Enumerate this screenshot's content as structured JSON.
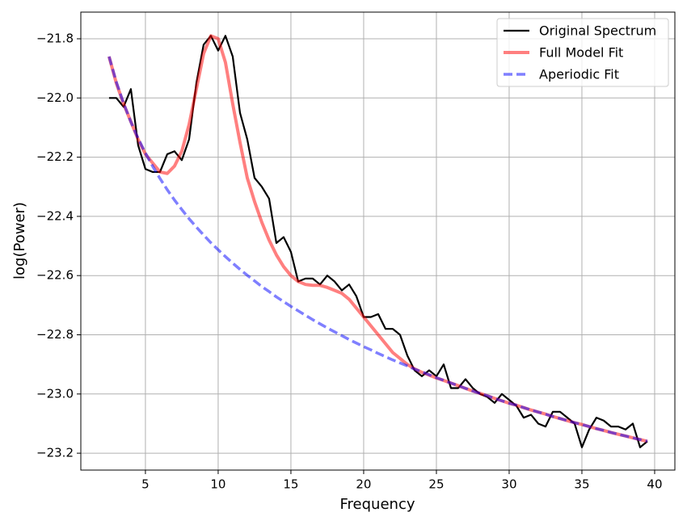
{
  "chart_data": {
    "type": "line",
    "xlabel": "Frequency",
    "ylabel": "log(Power)",
    "x": [
      2.5,
      3,
      3.5,
      4,
      4.5,
      5,
      5.5,
      6,
      6.5,
      7,
      7.5,
      8,
      8.5,
      9,
      9.5,
      10,
      10.5,
      11,
      11.5,
      12,
      12.5,
      13,
      13.5,
      14,
      14.5,
      15,
      15.5,
      16,
      16.5,
      17,
      17.5,
      18,
      18.5,
      19,
      19.5,
      20,
      20.5,
      21,
      21.5,
      22,
      22.5,
      23,
      23.5,
      24,
      24.5,
      25,
      25.5,
      26,
      26.5,
      27,
      27.5,
      28,
      28.5,
      29,
      29.5,
      30,
      30.5,
      31,
      31.5,
      32,
      32.5,
      33,
      33.5,
      34,
      34.5,
      35,
      35.5,
      36,
      36.5,
      37,
      37.5,
      38,
      38.5,
      39,
      39.5
    ],
    "series": [
      {
        "name": "Original Spectrum",
        "color": "#000000",
        "alpha": 1,
        "linestyle": "solid",
        "values": [
          -22.0,
          -22.0,
          -22.03,
          -21.97,
          -22.16,
          -22.24,
          -22.25,
          -22.25,
          -22.19,
          -22.18,
          -22.21,
          -22.14,
          -21.95,
          -21.82,
          -21.79,
          -21.84,
          -21.79,
          -21.86,
          -22.05,
          -22.14,
          -22.27,
          -22.3,
          -22.34,
          -22.49,
          -22.47,
          -22.52,
          -22.62,
          -22.61,
          -22.61,
          -22.63,
          -22.6,
          -22.62,
          -22.65,
          -22.63,
          -22.67,
          -22.74,
          -22.74,
          -22.73,
          -22.78,
          -22.78,
          -22.8,
          -22.87,
          -22.92,
          -22.94,
          -22.92,
          -22.94,
          -22.9,
          -22.98,
          -22.98,
          -22.95,
          -22.98,
          -23.0,
          -23.01,
          -23.03,
          -23.0,
          -23.02,
          -23.04,
          -23.08,
          -23.07,
          -23.1,
          -23.11,
          -23.06,
          -23.06,
          -23.08,
          -23.1,
          -23.18,
          -23.12,
          -23.08,
          -23.09,
          -23.11,
          -23.11,
          -23.12,
          -23.1,
          -23.18,
          -23.16
        ]
      },
      {
        "name": "Full Model Fit",
        "color": "#ff0000",
        "alpha": 0.5,
        "linestyle": "solid",
        "values": [
          -21.86,
          -21.95,
          -22.02,
          -22.08,
          -22.14,
          -22.19,
          -22.22,
          -22.25,
          -22.255,
          -22.23,
          -22.18,
          -22.09,
          -21.97,
          -21.85,
          -21.79,
          -21.8,
          -21.88,
          -22.02,
          -22.15,
          -22.27,
          -22.35,
          -22.42,
          -22.48,
          -22.53,
          -22.57,
          -22.6,
          -22.62,
          -22.63,
          -22.633,
          -22.633,
          -22.64,
          -22.65,
          -22.66,
          -22.68,
          -22.71,
          -22.74,
          -22.77,
          -22.8,
          -22.83,
          -22.86,
          -22.88,
          -22.9,
          -22.915,
          -22.927,
          -22.936,
          -22.946,
          -22.954,
          -22.963,
          -22.972,
          -22.981,
          -22.99,
          -22.998,
          -23.006,
          -23.015,
          -23.023,
          -23.031,
          -23.038,
          -23.046,
          -23.054,
          -23.061,
          -23.068,
          -23.076,
          -23.083,
          -23.09,
          -23.097,
          -23.103,
          -23.11,
          -23.117,
          -23.123,
          -23.13,
          -23.136,
          -23.142,
          -23.148,
          -23.154,
          -23.16
        ]
      },
      {
        "name": "Aperiodic Fit",
        "color": "#0000ff",
        "alpha": 0.5,
        "linestyle": "dashed",
        "values": [
          -21.86,
          -21.946,
          -22.018,
          -22.081,
          -22.137,
          -22.186,
          -22.231,
          -22.272,
          -22.31,
          -22.345,
          -22.377,
          -22.408,
          -22.436,
          -22.463,
          -22.489,
          -22.513,
          -22.536,
          -22.558,
          -22.579,
          -22.599,
          -22.618,
          -22.637,
          -22.654,
          -22.672,
          -22.688,
          -22.704,
          -22.719,
          -22.734,
          -22.749,
          -22.763,
          -22.777,
          -22.79,
          -22.803,
          -22.816,
          -22.828,
          -22.84,
          -22.851,
          -22.863,
          -22.874,
          -22.885,
          -22.895,
          -22.905,
          -22.916,
          -22.925,
          -22.935,
          -22.945,
          -22.954,
          -22.963,
          -22.972,
          -22.981,
          -22.99,
          -22.998,
          -23.006,
          -23.015,
          -23.023,
          -23.031,
          -23.038,
          -23.046,
          -23.054,
          -23.061,
          -23.068,
          -23.076,
          -23.083,
          -23.09,
          -23.097,
          -23.103,
          -23.11,
          -23.117,
          -23.123,
          -23.13,
          -23.136,
          -23.142,
          -23.148,
          -23.154,
          -23.16
        ]
      }
    ],
    "xlim": [
      0.56,
      41.39
    ],
    "ylim": [
      -23.257,
      -21.71
    ],
    "xticks": [
      5,
      10,
      15,
      20,
      25,
      30,
      35,
      40
    ],
    "yticks": [
      {
        "value": -21.8,
        "label": "−21.8"
      },
      {
        "value": -22.0,
        "label": "−22.0"
      },
      {
        "value": -22.2,
        "label": "−22.2"
      },
      {
        "value": -22.4,
        "label": "−22.4"
      },
      {
        "value": -22.6,
        "label": "−22.6"
      },
      {
        "value": -22.8,
        "label": "−22.8"
      },
      {
        "value": -23.0,
        "label": "−23.0"
      },
      {
        "value": -23.2,
        "label": "−23.2"
      }
    ],
    "grid": true,
    "legend": "upper right"
  }
}
